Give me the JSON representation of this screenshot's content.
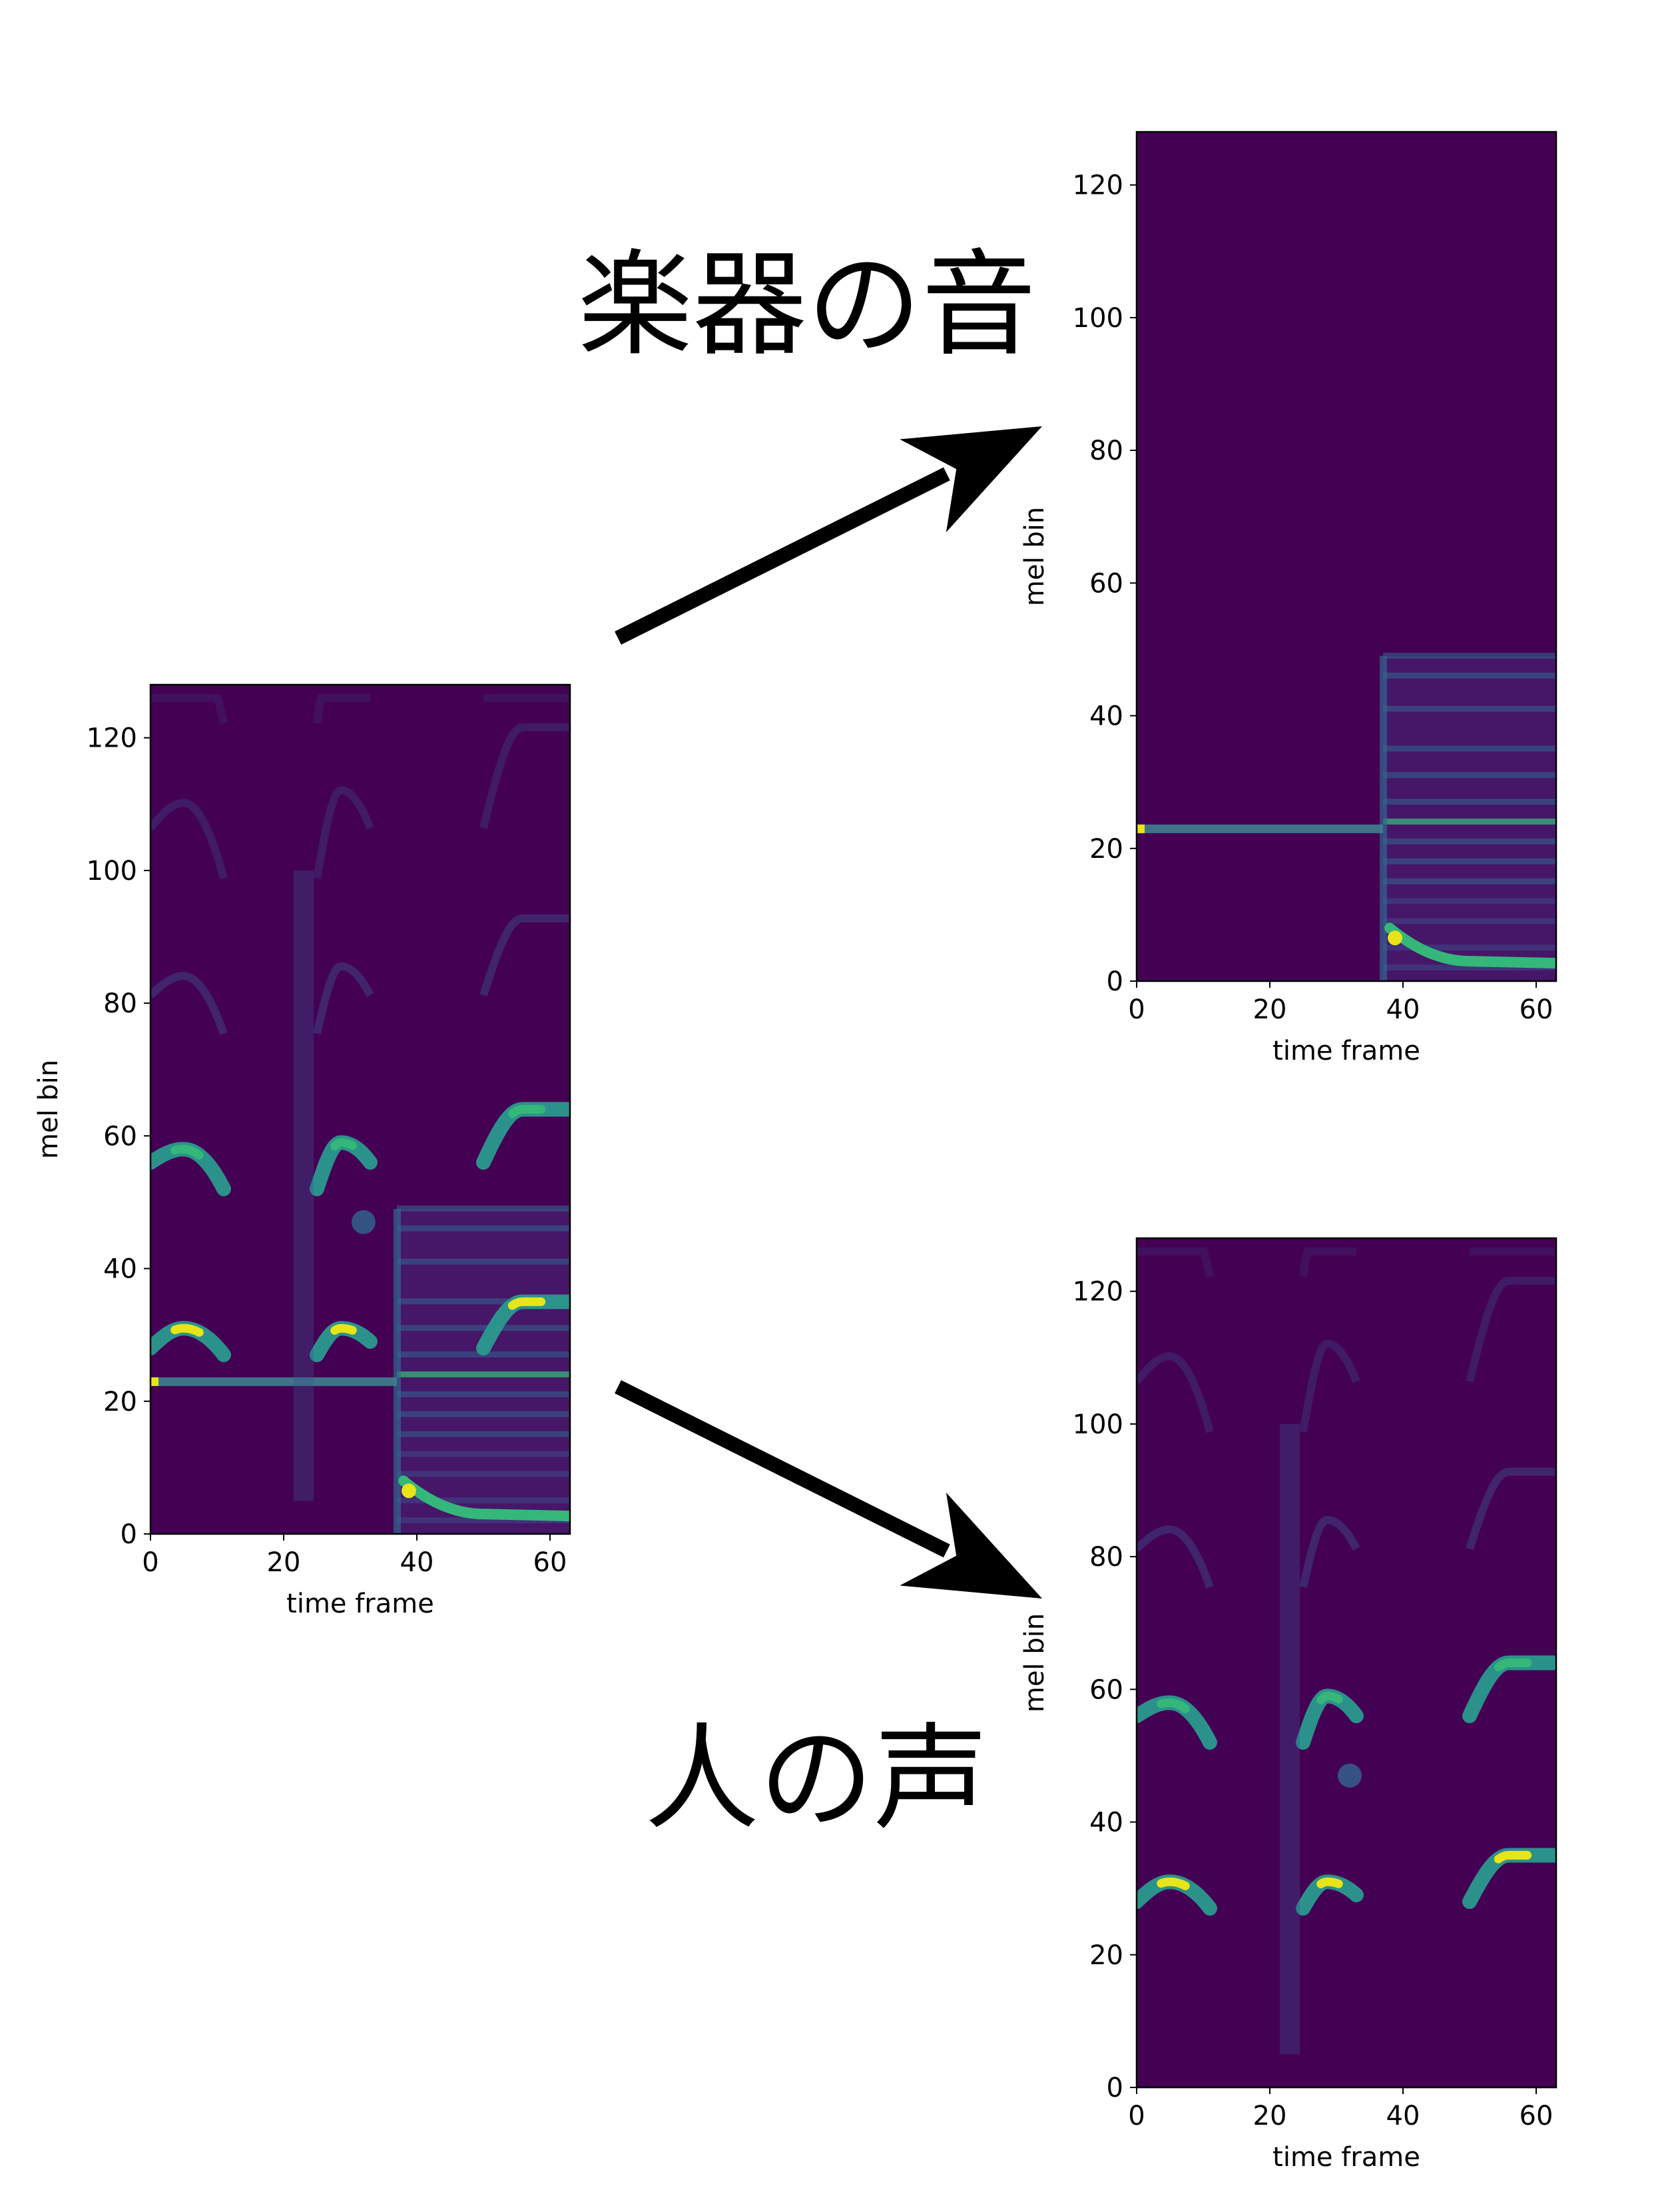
{
  "colors": {
    "background_color": "#440154",
    "harmonic_mid": "#2a9a8e",
    "harmonic_peak": "#e7e419",
    "harmonic_bright": "#35b779",
    "faint_detail": "#3b528b",
    "arrow": "#000000"
  },
  "labels": {
    "instrument": "楽器の音",
    "voice": "人の声"
  },
  "arrows": [
    {
      "name": "arrow-to-instrument",
      "from": "mixture",
      "to": "instrument"
    },
    {
      "name": "arrow-to-voice",
      "from": "mixture",
      "to": "voice"
    }
  ],
  "chart_data": [
    {
      "id": "mixture",
      "type": "heatmap",
      "colormap": "viridis",
      "xlabel": "time frame",
      "ylabel": "mel bin",
      "xlim": [
        0,
        63
      ],
      "ylim": [
        0,
        128
      ],
      "xticks": [
        0,
        20,
        40,
        60
      ],
      "yticks": [
        0,
        20,
        40,
        60,
        80,
        100,
        120
      ],
      "features": {
        "sustained_tone_bin": 23,
        "sustained_tone_frames": [
          0,
          37
        ],
        "voice_harmonics": [
          {
            "frames": [
              0,
              11
            ],
            "bin_start": 28,
            "bin_peak": 31,
            "bin_end": 27
          },
          {
            "frames": [
              0,
              11
            ],
            "bin_start": 56,
            "bin_peak": 58,
            "bin_end": 52
          },
          {
            "frames": [
              25,
              33
            ],
            "bin_start": 27,
            "bin_peak": 31,
            "bin_end": 29
          },
          {
            "frames": [
              25,
              33
            ],
            "bin_start": 52,
            "bin_peak": 59,
            "bin_end": 56
          },
          {
            "frames": [
              50,
              63
            ],
            "bin_start": 28,
            "bin_peak": 35,
            "bin_end": 35
          },
          {
            "frames": [
              50,
              63
            ],
            "bin_start": 56,
            "bin_peak": 64,
            "bin_end": 64
          }
        ],
        "instrument_burst_frames": [
          37,
          63
        ],
        "instrument_burst_bins": [
          0,
          49
        ]
      }
    },
    {
      "id": "instrument",
      "type": "heatmap",
      "colormap": "viridis",
      "xlabel": "time frame",
      "ylabel": "mel bin",
      "xlim": [
        0,
        63
      ],
      "ylim": [
        0,
        128
      ],
      "xticks": [
        0,
        20,
        40,
        60
      ],
      "yticks": [
        0,
        20,
        40,
        60,
        80,
        100,
        120
      ],
      "features": {
        "sustained_tone_bin": 23,
        "sustained_tone_frames": [
          0,
          37
        ],
        "burst_frames": [
          37,
          63
        ],
        "burst_bins": [
          0,
          49
        ],
        "decay_curve": {
          "frames": [
            38,
            50
          ],
          "bin_start": 8,
          "bin_end": 3
        }
      }
    },
    {
      "id": "voice",
      "type": "heatmap",
      "colormap": "viridis",
      "xlabel": "time frame",
      "ylabel": "mel bin",
      "xlim": [
        0,
        63
      ],
      "ylim": [
        0,
        128
      ],
      "xticks": [
        0,
        20,
        40,
        60
      ],
      "yticks": [
        0,
        20,
        40,
        60,
        80,
        100,
        120
      ],
      "features": {
        "voice_harmonics": [
          {
            "frames": [
              0,
              11
            ],
            "bin_start": 28,
            "bin_peak": 31,
            "bin_end": 27
          },
          {
            "frames": [
              0,
              11
            ],
            "bin_start": 56,
            "bin_peak": 58,
            "bin_end": 52
          },
          {
            "frames": [
              25,
              33
            ],
            "bin_start": 27,
            "bin_peak": 31,
            "bin_end": 29
          },
          {
            "frames": [
              25,
              33
            ],
            "bin_start": 52,
            "bin_peak": 59,
            "bin_end": 56
          },
          {
            "frames": [
              50,
              63
            ],
            "bin_start": 28,
            "bin_peak": 35,
            "bin_end": 35
          },
          {
            "frames": [
              50,
              63
            ],
            "bin_start": 56,
            "bin_peak": 64,
            "bin_end": 64
          }
        ]
      }
    }
  ]
}
